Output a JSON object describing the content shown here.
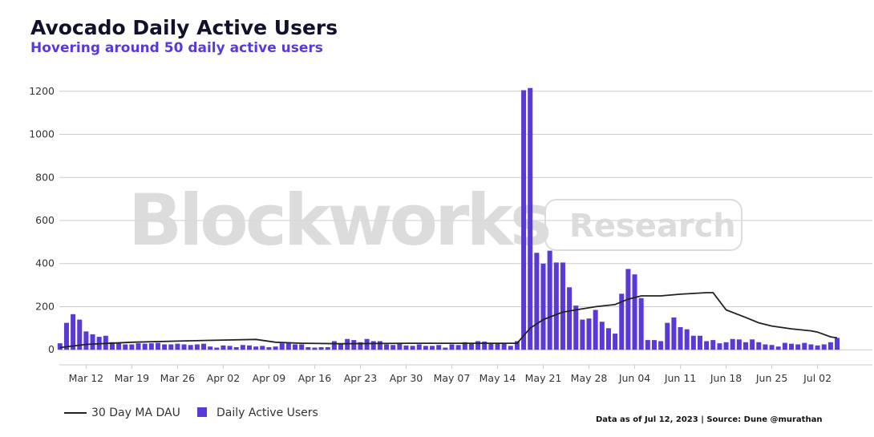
{
  "header": {
    "title": "Avocado Daily Active Users",
    "subtitle": "Hovering around 50 daily active users"
  },
  "watermark": {
    "brand": "Blockworks",
    "badge": "Research"
  },
  "footer": "Data as of Jul 12, 2023 | Source: Dune @murathan",
  "colors": {
    "bar": "#5a3ad6",
    "line": "#222222",
    "grid": "#cccccc",
    "title": "#12112b",
    "subtitle": "#5a3ad6"
  },
  "chart_data": {
    "type": "bar",
    "title": "Avocado Daily Active Users",
    "subtitle": "Hovering around 50 daily active users",
    "xlabel": "",
    "ylabel": "",
    "x_start": "2023-03-08",
    "xlim": [
      "2023-03-08",
      "2023-07-10"
    ],
    "ylim": [
      -70,
      1270
    ],
    "yticks": [
      0,
      200,
      400,
      600,
      800,
      1000,
      1200
    ],
    "xticks": [
      {
        "date": "2023-03-12",
        "label": "Mar 12"
      },
      {
        "date": "2023-03-19",
        "label": "Mar 19"
      },
      {
        "date": "2023-03-26",
        "label": "Mar 26"
      },
      {
        "date": "2023-04-02",
        "label": "Apr 02"
      },
      {
        "date": "2023-04-09",
        "label": "Apr 09"
      },
      {
        "date": "2023-04-16",
        "label": "Apr 16"
      },
      {
        "date": "2023-04-23",
        "label": "Apr 23"
      },
      {
        "date": "2023-04-30",
        "label": "Apr 30"
      },
      {
        "date": "2023-05-07",
        "label": "May 07"
      },
      {
        "date": "2023-05-14",
        "label": "May 14"
      },
      {
        "date": "2023-05-21",
        "label": "May 21"
      },
      {
        "date": "2023-05-28",
        "label": "May 28"
      },
      {
        "date": "2023-06-04",
        "label": "Jun 04"
      },
      {
        "date": "2023-06-11",
        "label": "Jun 11"
      },
      {
        "date": "2023-06-18",
        "label": "Jun 18"
      },
      {
        "date": "2023-06-25",
        "label": "Jun 25"
      },
      {
        "date": "2023-07-02",
        "label": "Jul 02"
      }
    ],
    "grid": true,
    "legend_position": "bottom-left",
    "series": [
      {
        "name": "Daily Active Users",
        "type": "bar",
        "values": [
          30,
          125,
          165,
          140,
          85,
          72,
          60,
          65,
          35,
          30,
          25,
          25,
          30,
          28,
          30,
          32,
          25,
          25,
          28,
          25,
          22,
          25,
          28,
          15,
          10,
          20,
          18,
          12,
          22,
          20,
          15,
          18,
          12,
          15,
          30,
          30,
          25,
          25,
          12,
          10,
          12,
          12,
          40,
          25,
          50,
          45,
          35,
          50,
          40,
          40,
          25,
          22,
          28,
          20,
          18,
          25,
          18,
          18,
          22,
          10,
          25,
          22,
          35,
          30,
          40,
          38,
          30,
          30,
          30,
          18,
          40,
          1205,
          1215,
          450,
          400,
          460,
          405,
          405,
          290,
          205,
          140,
          145,
          185,
          130,
          100,
          75,
          260,
          375,
          350,
          240,
          45,
          45,
          40,
          125,
          150,
          105,
          95,
          65,
          65,
          40,
          45,
          30,
          35,
          50,
          48,
          35,
          48,
          35,
          25,
          22,
          15,
          32,
          28,
          25,
          32,
          25,
          20,
          25,
          35,
          55
        ]
      },
      {
        "name": "30 Day MA DAU",
        "type": "line",
        "points": [
          [
            "2023-03-08",
            10
          ],
          [
            "2023-03-12",
            25
          ],
          [
            "2023-03-19",
            35
          ],
          [
            "2023-03-26",
            40
          ],
          [
            "2023-04-02",
            45
          ],
          [
            "2023-04-07",
            48
          ],
          [
            "2023-04-10",
            35
          ],
          [
            "2023-04-14",
            30
          ],
          [
            "2023-04-20",
            28
          ],
          [
            "2023-05-01",
            30
          ],
          [
            "2023-05-17",
            30
          ],
          [
            "2023-05-19",
            100
          ],
          [
            "2023-05-21",
            140
          ],
          [
            "2023-05-24",
            175
          ],
          [
            "2023-05-27",
            190
          ],
          [
            "2023-05-29",
            200
          ],
          [
            "2023-06-01",
            210
          ],
          [
            "2023-06-03",
            235
          ],
          [
            "2023-06-05",
            250
          ],
          [
            "2023-06-08",
            250
          ],
          [
            "2023-06-11",
            258
          ],
          [
            "2023-06-15",
            265
          ],
          [
            "2023-06-16",
            265
          ],
          [
            "2023-06-18",
            185
          ],
          [
            "2023-06-21",
            150
          ],
          [
            "2023-06-23",
            125
          ],
          [
            "2023-06-25",
            110
          ],
          [
            "2023-06-28",
            97
          ],
          [
            "2023-07-01",
            88
          ],
          [
            "2023-07-02",
            82
          ],
          [
            "2023-07-04",
            60
          ],
          [
            "2023-07-05",
            55
          ]
        ]
      }
    ]
  }
}
